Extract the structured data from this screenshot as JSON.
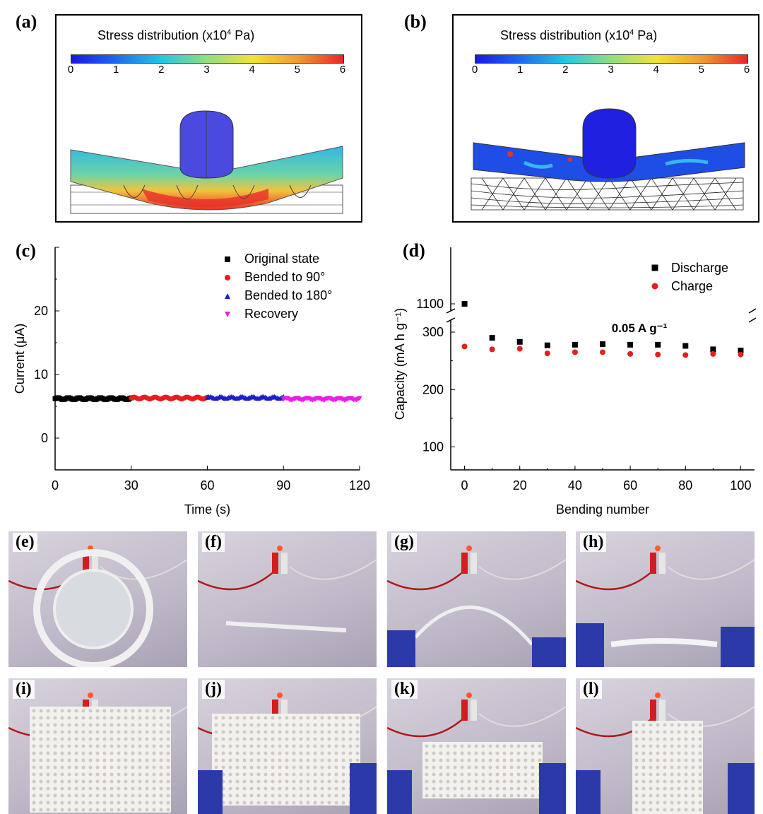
{
  "panels": {
    "a": {
      "letter": "(a)",
      "title_text": "Stress distribution (x10",
      "title_sup": "4",
      "title_unit": " Pa)",
      "ticks": [
        "0",
        "1",
        "2",
        "3",
        "4",
        "5",
        "6"
      ]
    },
    "b": {
      "letter": "(b)",
      "title_text": "Stress distribution (x10",
      "title_sup": "4",
      "title_unit": " Pa)",
      "ticks": [
        "0",
        "1",
        "2",
        "3",
        "4",
        "5",
        "6"
      ]
    },
    "c": {
      "letter": "(c)"
    },
    "d": {
      "letter": "(d)"
    },
    "photos": [
      {
        "letter": "(e)",
        "scene": "ring"
      },
      {
        "letter": "(f)",
        "scene": "straight"
      },
      {
        "letter": "(g)",
        "scene": "bent"
      },
      {
        "letter": "(h)",
        "scene": "twisted"
      },
      {
        "letter": "(i)",
        "scene": "mesh-flat"
      },
      {
        "letter": "(j)",
        "scene": "mesh-hold"
      },
      {
        "letter": "(k)",
        "scene": "mesh-bend"
      },
      {
        "letter": "(l)",
        "scene": "mesh-fold"
      }
    ]
  },
  "colors": {
    "black": "#000000",
    "red": "#e51e1e",
    "blue": "#1f1fc8",
    "magenta": "#e81ee8"
  },
  "chart_data": [
    {
      "id": "c",
      "type": "scatter",
      "xlabel": "Time (s)",
      "ylabel": "Current (μA)",
      "xlim": [
        0,
        120
      ],
      "ylim": [
        -5,
        30
      ],
      "xticks": [
        "0",
        "30",
        "60",
        "90",
        "120"
      ],
      "yticks": [
        "0",
        "10",
        "20"
      ],
      "legend_position": "top-right",
      "series": [
        {
          "name": "Original state",
          "marker": "square",
          "color": "#000000",
          "x_range": [
            0,
            30
          ],
          "approx_value": 6.2
        },
        {
          "name": "Bended to 90°",
          "marker": "circle",
          "color": "#e51e1e",
          "x_range": [
            30,
            60
          ],
          "approx_value": 6.3
        },
        {
          "name": "Bended to 180°",
          "marker": "triangle-up",
          "color": "#1f1fc8",
          "x_range": [
            60,
            90
          ],
          "approx_value": 6.4
        },
        {
          "name": "Recovery",
          "marker": "triangle-down",
          "color": "#e81ee8",
          "x_range": [
            90,
            120
          ],
          "approx_value": 6.1
        }
      ]
    },
    {
      "id": "d",
      "type": "scatter",
      "xlabel": "Bending number",
      "ylabel": "Capacity (mA h g⁻¹)",
      "xlim": [
        -5,
        105
      ],
      "xticks": [
        "0",
        "20",
        "40",
        "60",
        "80",
        "100"
      ],
      "yticks": [
        "100",
        "200",
        "300",
        "1100"
      ],
      "axis_break": "between 300 and 1100",
      "annotation": "0.05 A g⁻¹",
      "legend_position": "top-right",
      "x": [
        0,
        10,
        20,
        30,
        40,
        50,
        60,
        70,
        80,
        90,
        100
      ],
      "series": [
        {
          "name": "Discharge",
          "marker": "square",
          "color": "#000000",
          "values": [
            1100,
            290,
            283,
            277,
            278,
            279,
            278,
            278,
            276,
            270,
            268
          ]
        },
        {
          "name": "Charge",
          "marker": "circle",
          "color": "#e51e1e",
          "values": [
            275,
            270,
            271,
            263,
            265,
            265,
            262,
            261,
            260,
            262,
            261
          ]
        }
      ]
    }
  ]
}
